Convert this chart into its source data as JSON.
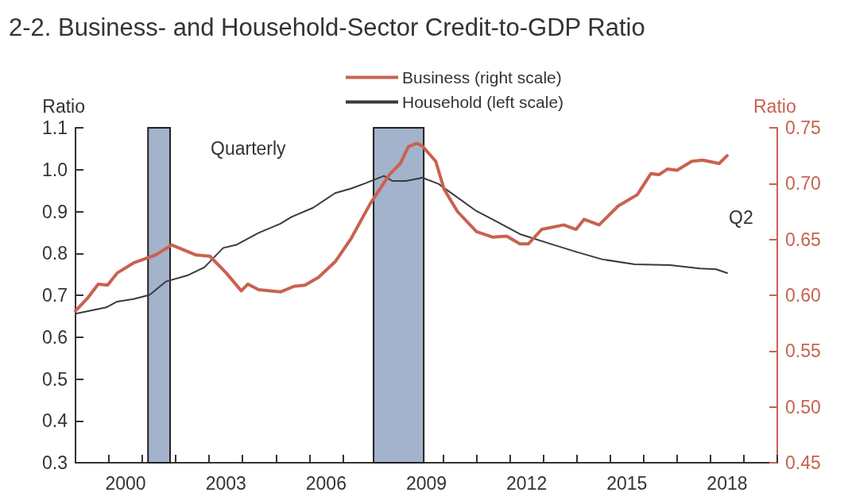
{
  "chart_data": {
    "type": "line",
    "title": "2-2. Business- and Household-Sector Credit-to-GDP Ratio",
    "ylabel": "Ratio",
    "y2label": "Ratio",
    "annotations": [
      "Quarterly",
      "Q2"
    ],
    "xlim": [
      1999,
      2020
    ],
    "xticks": [
      {
        "value": 1999,
        "label": null
      },
      {
        "value": 2000,
        "label": null
      },
      {
        "value": 2000.5,
        "label": "2000"
      },
      {
        "value": 2001,
        "label": null
      },
      {
        "value": 2002,
        "label": null
      },
      {
        "value": 2003,
        "label": null
      },
      {
        "value": 2003.5,
        "label": "2003"
      },
      {
        "value": 2004,
        "label": null
      },
      {
        "value": 2005,
        "label": null
      },
      {
        "value": 2006,
        "label": null
      },
      {
        "value": 2006.5,
        "label": "2006"
      },
      {
        "value": 2007,
        "label": null
      },
      {
        "value": 2008,
        "label": null
      },
      {
        "value": 2009,
        "label": null
      },
      {
        "value": 2009.5,
        "label": "2009"
      },
      {
        "value": 2010,
        "label": null
      },
      {
        "value": 2011,
        "label": null
      },
      {
        "value": 2012,
        "label": null
      },
      {
        "value": 2012.5,
        "label": "2012"
      },
      {
        "value": 2013,
        "label": null
      },
      {
        "value": 2014,
        "label": null
      },
      {
        "value": 2015,
        "label": null
      },
      {
        "value": 2015.5,
        "label": "2015"
      },
      {
        "value": 2016,
        "label": null
      },
      {
        "value": 2017,
        "label": null
      },
      {
        "value": 2018,
        "label": null
      },
      {
        "value": 2018.5,
        "label": "2018"
      },
      {
        "value": 2019,
        "label": null
      },
      {
        "value": 2020,
        "label": null
      }
    ],
    "ylim": [
      0.3,
      1.1
    ],
    "yticks": [
      0.3,
      0.4,
      0.5,
      0.6,
      0.7,
      0.8,
      0.9,
      {
        "value": 1,
        "label": "1.0"
      },
      1.1
    ],
    "y2lim": [
      0.45,
      0.75
    ],
    "y2ticks": [
      0.45,
      {
        "value": 0.5,
        "label": "0.50"
      },
      0.55,
      {
        "value": 0.6,
        "label": "0.60"
      },
      0.65,
      {
        "value": 0.7,
        "label": "0.70"
      },
      0.75
    ],
    "grid": false,
    "legend": "top",
    "marker": "none",
    "bands": [
      {
        "axis": "x",
        "from": 2001.17,
        "to": 2001.83,
        "color": "#a3b3cb"
      },
      {
        "axis": "x",
        "from": 2007.92,
        "to": 2009.42,
        "color": "#a3b3cb"
      }
    ],
    "series": [
      {
        "name": "Business (right scale)",
        "color": "#c8624f",
        "axis": "y2",
        "x": [
          1999.0,
          1999.35,
          1999.68,
          1999.96,
          2000.25,
          2000.74,
          2001.39,
          2001.88,
          2002.61,
          2003.02,
          2003.51,
          2003.96,
          2004.16,
          2004.48,
          2005.13,
          2005.54,
          2005.87,
          2006.27,
          2006.77,
          2007.25,
          2007.82,
          2008.39,
          2008.72,
          2008.96,
          2009.21,
          2009.37,
          2009.78,
          2010.03,
          2010.43,
          2011.0,
          2011.49,
          2011.9,
          2012.3,
          2012.55,
          2012.95,
          2013.61,
          2013.98,
          2014.22,
          2014.67,
          2015.24,
          2015.81,
          2016.22,
          2016.46,
          2016.71,
          2017.0,
          2017.44,
          2017.77,
          2018.26,
          2018.5
        ],
        "values": [
          0.586,
          0.597,
          0.61,
          0.609,
          0.62,
          0.629,
          0.636,
          0.645,
          0.636,
          0.635,
          0.62,
          0.604,
          0.61,
          0.605,
          0.603,
          0.608,
          0.609,
          0.616,
          0.63,
          0.651,
          0.682,
          0.708,
          0.718,
          0.733,
          0.736,
          0.734,
          0.72,
          0.695,
          0.675,
          0.657,
          0.652,
          0.653,
          0.646,
          0.646,
          0.659,
          0.663,
          0.659,
          0.668,
          0.663,
          0.68,
          0.69,
          0.709,
          0.708,
          0.713,
          0.712,
          0.72,
          0.721,
          0.718,
          0.725
        ]
      },
      {
        "name": "Household (left scale)",
        "color": "#3a3a3a",
        "x": [
          1999.0,
          1999.92,
          2000.25,
          2000.74,
          2001.22,
          2001.71,
          2002.37,
          2002.86,
          2003.42,
          2003.83,
          2004.48,
          2005.13,
          2005.46,
          2006.11,
          2006.77,
          2007.25,
          2007.66,
          2008.23,
          2008.48,
          2008.89,
          2009.29,
          2009.37,
          2009.86,
          2011.0,
          2011.49,
          2012.3,
          2013.28,
          2014.01,
          2014.75,
          2015.73,
          2016.79,
          2017.68,
          2018.17,
          2018.5
        ],
        "values": [
          0.656,
          0.671,
          0.685,
          0.691,
          0.701,
          0.733,
          0.748,
          0.767,
          0.813,
          0.821,
          0.849,
          0.871,
          0.887,
          0.909,
          0.944,
          0.955,
          0.967,
          0.985,
          0.973,
          0.973,
          0.979,
          0.981,
          0.966,
          0.901,
          0.881,
          0.846,
          0.821,
          0.803,
          0.786,
          0.774,
          0.772,
          0.764,
          0.762,
          0.753
        ]
      }
    ]
  }
}
